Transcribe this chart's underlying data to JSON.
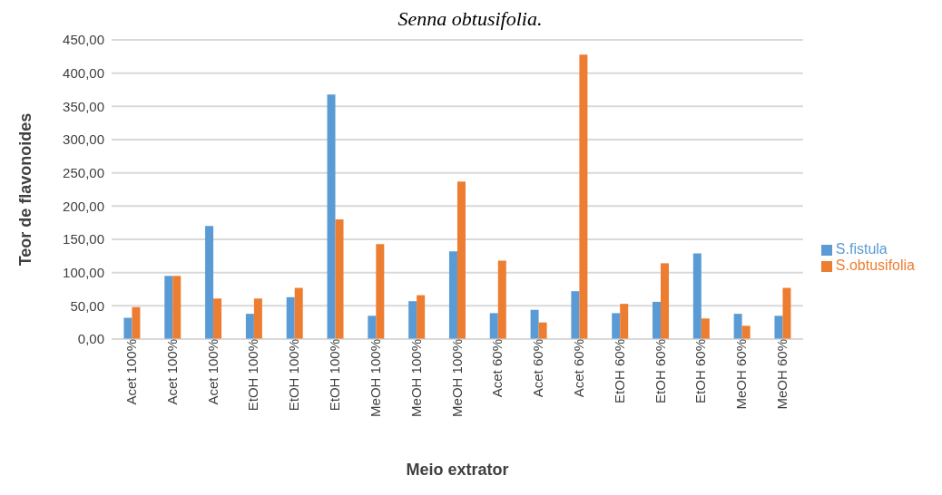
{
  "chart_data": {
    "type": "bar",
    "title": "Senna obtusifolia.",
    "xlabel": "Meio extrator",
    "ylabel": "Teor de flavonoides",
    "categories": [
      "Acet 100%",
      "Acet 100%",
      "Acet 100%",
      "EtOH 100%",
      "EtOH 100%",
      "EtOH 100%",
      "MeOH 100%",
      "MeOH 100%",
      "MeOH 100%",
      "Acet 60%",
      "Acet 60%",
      "Acet 60%",
      "EtOH 60%",
      "EtOH 60%",
      "EtOH 60%",
      "MeOH 60%",
      "MeOH 60%"
    ],
    "series": [
      {
        "name": "S.fistula",
        "color": "#5b9bd5",
        "values": [
          32,
          95,
          170,
          38,
          63,
          368,
          35,
          57,
          132,
          39,
          44,
          72,
          39,
          56,
          129,
          38,
          35
        ]
      },
      {
        "name": "S.obtusifolia",
        "color": "#ed7d31",
        "values": [
          48,
          95,
          61,
          61,
          77,
          180,
          143,
          66,
          237,
          118,
          25,
          428,
          53,
          114,
          31,
          20,
          77
        ]
      }
    ],
    "ylim": [
      0,
      450
    ],
    "yticks": [
      {
        "value": 0,
        "label": "0,00"
      },
      {
        "value": 50,
        "label": "50,00"
      },
      {
        "value": 100,
        "label": "100,00"
      },
      {
        "value": 150,
        "label": "150,00"
      },
      {
        "value": 200,
        "label": "200,00"
      },
      {
        "value": 250,
        "label": "250,00"
      },
      {
        "value": 300,
        "label": "300,00"
      },
      {
        "value": 350,
        "label": "350,00"
      },
      {
        "value": 400,
        "label": "400,00"
      },
      {
        "value": 450,
        "label": "450,00"
      }
    ],
    "grid": "y",
    "legend": "right"
  }
}
